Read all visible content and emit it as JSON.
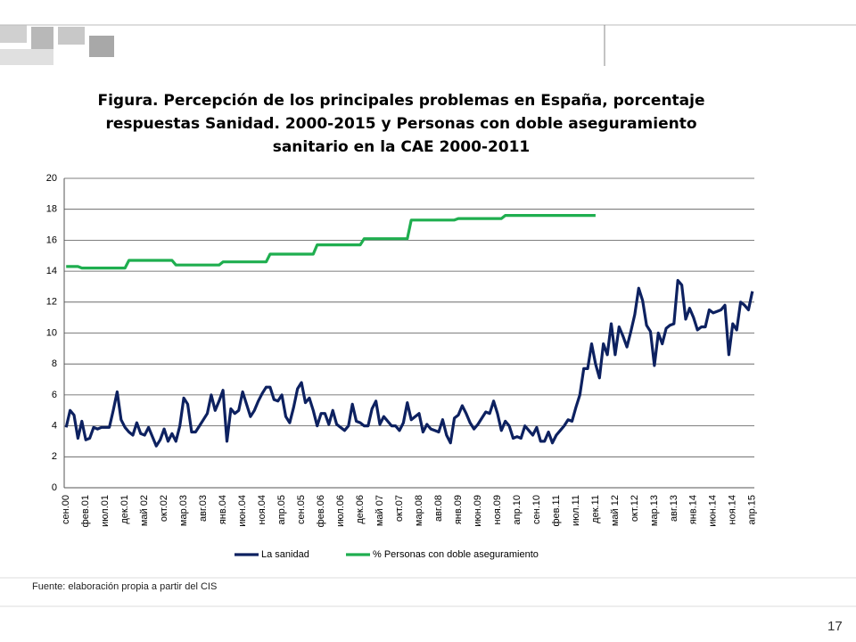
{
  "page": {
    "source": "Fuente: elaboración propia a partir del CIS",
    "page_number": "17"
  },
  "chart_data": {
    "type": "line",
    "title": "Figura. Percepción de los principales problemas en España, porcentaje respuestas Sanidad. 2000-2015 y Personas con doble aseguramiento sanitario en la CAE 2000-2011",
    "categories": [
      "сен.00",
      null,
      null,
      null,
      null,
      "фев.01",
      null,
      null,
      null,
      null,
      "июл.01",
      null,
      null,
      null,
      null,
      "дек.01",
      null,
      null,
      null,
      null,
      "май 02",
      null,
      null,
      null,
      null,
      "окт.02",
      null,
      null,
      null,
      null,
      "мар.03",
      null,
      null,
      null,
      null,
      "авг.03",
      null,
      null,
      null,
      null,
      "янв.04",
      null,
      null,
      null,
      null,
      "июн.04",
      null,
      null,
      null,
      null,
      "ноя.04",
      null,
      null,
      null,
      null,
      "апр.05",
      null,
      null,
      null,
      null,
      "сен.05",
      null,
      null,
      null,
      null,
      "фев.06",
      null,
      null,
      null,
      null,
      "июл.06",
      null,
      null,
      null,
      null,
      "дек.06",
      null,
      null,
      null,
      null,
      "май 07",
      null,
      null,
      null,
      null,
      "окт.07",
      null,
      null,
      null,
      null,
      "мар.08",
      null,
      null,
      null,
      null,
      "авг.08",
      null,
      null,
      null,
      null,
      "янв.09",
      null,
      null,
      null,
      null,
      "июн.09",
      null,
      null,
      null,
      null,
      "ноя.09",
      null,
      null,
      null,
      null,
      "апр.10",
      null,
      null,
      null,
      null,
      "сен.10",
      null,
      null,
      null,
      null,
      "фев.11",
      null,
      null,
      null,
      null,
      "июл.11",
      null,
      null,
      null,
      null,
      "дек.11",
      null,
      null,
      null,
      null,
      "май 12",
      null,
      null,
      null,
      null,
      "окт.12",
      null,
      null,
      null,
      null,
      "мар.13",
      null,
      null,
      null,
      null,
      "авг.13",
      null,
      null,
      null,
      null,
      "янв.14",
      null,
      null,
      null,
      null,
      "июн.14",
      null,
      null,
      null,
      null,
      "ноя.14",
      null,
      null,
      null,
      null,
      "апр.15"
    ],
    "series": [
      {
        "name": "La sanidad",
        "color": "#0d2160",
        "values": [
          3.9,
          5.0,
          4.7,
          3.2,
          4.3,
          3.1,
          3.2,
          3.9,
          3.8,
          3.9,
          3.9,
          3.9,
          5.0,
          6.2,
          4.4,
          3.9,
          3.6,
          3.4,
          4.2,
          3.5,
          3.4,
          3.9,
          3.3,
          2.7,
          3.1,
          3.8,
          3.0,
          3.5,
          3.0,
          4.0,
          5.8,
          5.4,
          3.6,
          3.6,
          4.0,
          4.4,
          4.8,
          6.0,
          5.0,
          5.6,
          6.3,
          3.0,
          5.1,
          4.8,
          5.0,
          6.2,
          5.4,
          4.6,
          5.0,
          5.6,
          6.1,
          6.5,
          6.5,
          5.7,
          5.6,
          6.0,
          4.6,
          4.2,
          5.2,
          6.4,
          6.8,
          5.5,
          5.8,
          5.0,
          4.0,
          4.8,
          4.8,
          4.1,
          5.0,
          4.1,
          3.9,
          3.7,
          4.0,
          5.4,
          4.3,
          4.2,
          4.0,
          4.0,
          5.1,
          5.6,
          4.1,
          4.6,
          4.3,
          4.0,
          4.0,
          3.7,
          4.2,
          5.5,
          4.4,
          4.6,
          4.8,
          3.6,
          4.1,
          3.8,
          3.7,
          3.6,
          4.4,
          3.4,
          2.9,
          4.5,
          4.7,
          5.3,
          4.8,
          4.2,
          3.8,
          4.1,
          4.5,
          4.9,
          4.8,
          5.6,
          4.8,
          3.7,
          4.3,
          4.0,
          3.2,
          3.3,
          3.2,
          4.0,
          3.7,
          3.4,
          3.9,
          3.0,
          3.0,
          3.6,
          2.9,
          3.4,
          3.7,
          4.0,
          4.4,
          4.3,
          5.2,
          6.0,
          7.7,
          7.7,
          9.3,
          8.0,
          7.1,
          9.3,
          8.6,
          10.6,
          8.6,
          10.4,
          9.8,
          9.1,
          10.1,
          11.2,
          12.9,
          12.1,
          10.5,
          10.1,
          7.9,
          10.0,
          9.3,
          10.3,
          10.5,
          10.6,
          13.4,
          13.1,
          10.9,
          11.6,
          11.0,
          10.2,
          10.4,
          10.4,
          11.5,
          11.3,
          11.4,
          11.5,
          11.8,
          8.6,
          10.6,
          10.2,
          12.0,
          11.8,
          11.5,
          12.7
        ]
      },
      {
        "name": "% Personas con doble aseguramiento",
        "color": "#1fae4f",
        "values": [
          14.3,
          14.3,
          14.3,
          14.3,
          14.2,
          14.2,
          14.2,
          14.2,
          14.2,
          14.2,
          14.2,
          14.2,
          14.2,
          14.2,
          14.2,
          14.2,
          14.7,
          14.7,
          14.7,
          14.7,
          14.7,
          14.7,
          14.7,
          14.7,
          14.7,
          14.7,
          14.7,
          14.7,
          14.4,
          14.4,
          14.4,
          14.4,
          14.4,
          14.4,
          14.4,
          14.4,
          14.4,
          14.4,
          14.4,
          14.4,
          14.6,
          14.6,
          14.6,
          14.6,
          14.6,
          14.6,
          14.6,
          14.6,
          14.6,
          14.6,
          14.6,
          14.6,
          15.1,
          15.1,
          15.1,
          15.1,
          15.1,
          15.1,
          15.1,
          15.1,
          15.1,
          15.1,
          15.1,
          15.1,
          15.7,
          15.7,
          15.7,
          15.7,
          15.7,
          15.7,
          15.7,
          15.7,
          15.7,
          15.7,
          15.7,
          15.7,
          16.1,
          16.1,
          16.1,
          16.1,
          16.1,
          16.1,
          16.1,
          16.1,
          16.1,
          16.1,
          16.1,
          16.1,
          17.3,
          17.3,
          17.3,
          17.3,
          17.3,
          17.3,
          17.3,
          17.3,
          17.3,
          17.3,
          17.3,
          17.3,
          17.4,
          17.4,
          17.4,
          17.4,
          17.4,
          17.4,
          17.4,
          17.4,
          17.4,
          17.4,
          17.4,
          17.4,
          17.6,
          17.6,
          17.6,
          17.6,
          17.6,
          17.6,
          17.6,
          17.6,
          17.6,
          17.6,
          17.6,
          17.6,
          17.6,
          17.6,
          17.6,
          17.6,
          17.6,
          17.6,
          17.6,
          17.6,
          17.6,
          17.6,
          17.6,
          17.6,
          null,
          null,
          null,
          null,
          null,
          null,
          null,
          null,
          null,
          null,
          null,
          null,
          null,
          null,
          null,
          null,
          null,
          null,
          null,
          null,
          null,
          null,
          null,
          null,
          null,
          null,
          null,
          null,
          null,
          null,
          null,
          null,
          null,
          null,
          null,
          null,
          null,
          null,
          null,
          null
        ]
      }
    ],
    "ylim": [
      0,
      20
    ],
    "yticks": [
      0,
      2,
      4,
      6,
      8,
      10,
      12,
      14,
      16,
      18,
      20
    ],
    "grid": true,
    "legend": "bottom"
  }
}
